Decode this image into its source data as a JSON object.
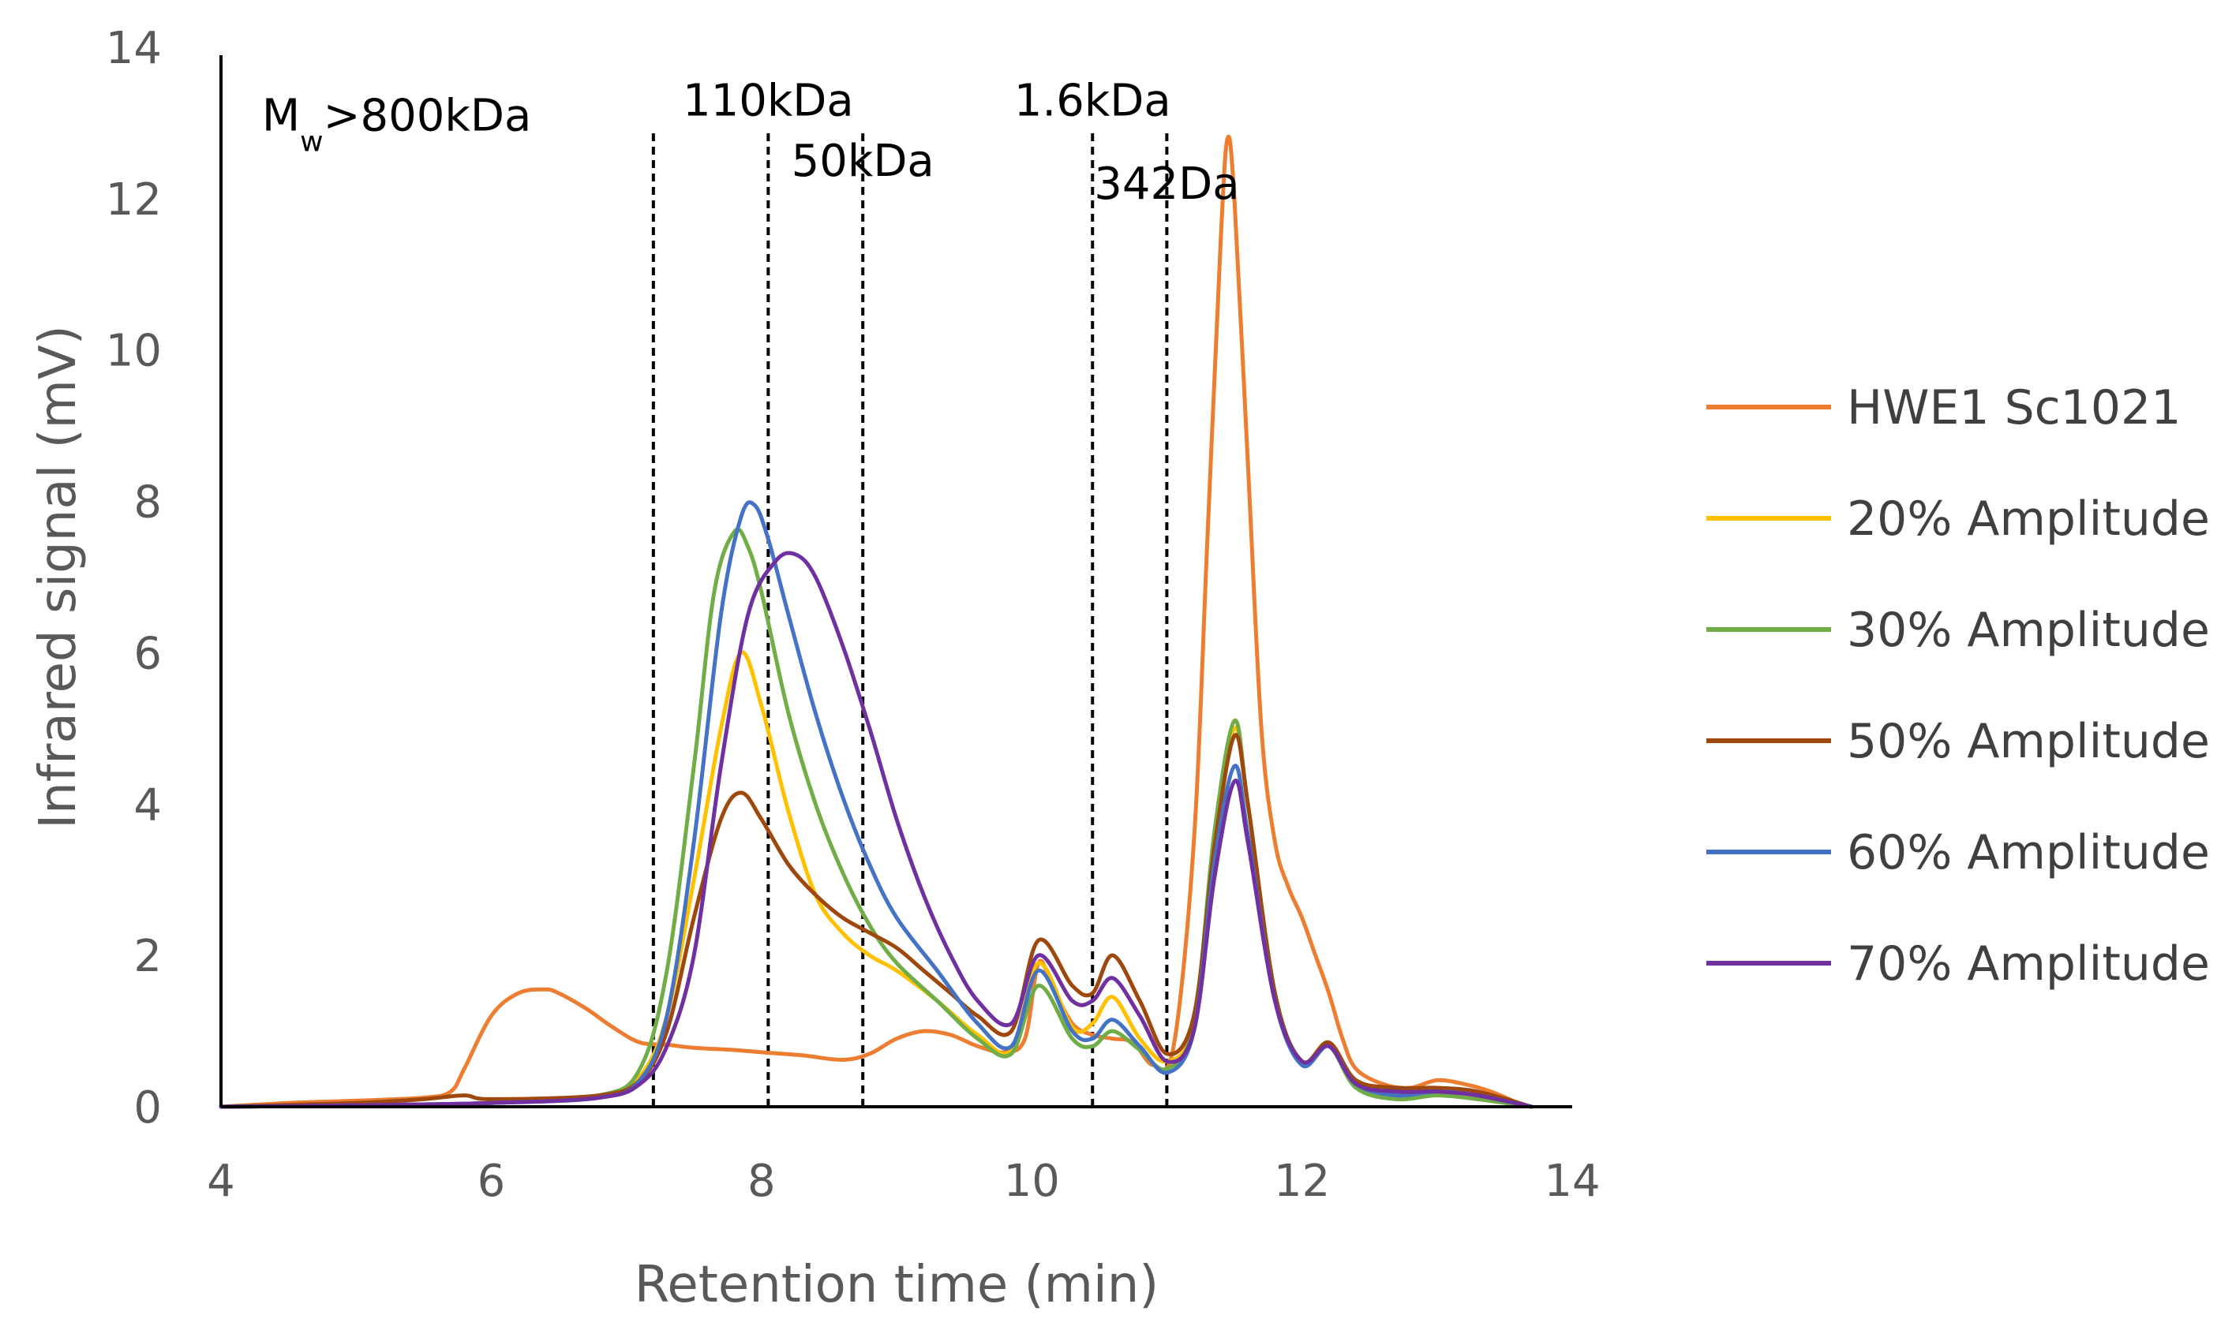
{
  "chart_data": {
    "type": "line",
    "title": "",
    "xlabel": "Retention time (min)",
    "ylabel": "Infrared signal (mV)",
    "xlim": [
      4,
      14
    ],
    "ylim": [
      0,
      14
    ],
    "xticks": [
      4,
      6,
      8,
      10,
      12,
      14
    ],
    "yticks": [
      0,
      2,
      4,
      6,
      8,
      10,
      12,
      14
    ],
    "grid": false,
    "legend_position": "right",
    "annotations": [
      {
        "main": "M",
        "sub": "w",
        "rest": ">800kDa",
        "x": 5.3,
        "y": 12.9
      },
      {
        "main": "110kDa",
        "x": 8.05,
        "y": 13.1
      },
      {
        "main": "50kDa",
        "x": 8.75,
        "y": 12.3
      },
      {
        "main": "1.6kDa",
        "x": 10.45,
        "y": 13.1
      },
      {
        "main": "342Da",
        "x": 11.0,
        "y": 12.0
      }
    ],
    "boundaries": [
      {
        "x": 7.2,
        "ymax": 12.9
      },
      {
        "x": 8.05,
        "ymax": 12.9
      },
      {
        "x": 8.75,
        "ymax": 12.9
      },
      {
        "x": 10.45,
        "ymax": 12.9
      },
      {
        "x": 11.0,
        "ymax": 12.9
      }
    ],
    "series": [
      {
        "name": "HWE1 Sc1021",
        "color": "#ED7D31",
        "x": [
          4.0,
          4.5,
          5.0,
          5.5,
          5.7,
          5.8,
          6.0,
          6.2,
          6.4,
          6.5,
          6.7,
          6.9,
          7.1,
          7.3,
          7.5,
          7.8,
          8.0,
          8.3,
          8.6,
          8.8,
          9.0,
          9.2,
          9.4,
          9.6,
          9.8,
          9.95,
          10.05,
          10.15,
          10.3,
          10.45,
          10.6,
          10.75,
          10.9,
          11.05,
          11.2,
          11.3,
          11.4,
          11.45,
          11.5,
          11.6,
          11.7,
          11.8,
          11.9,
          12.0,
          12.1,
          12.2,
          12.3,
          12.4,
          12.6,
          12.8,
          13.0,
          13.2,
          13.4,
          13.6,
          13.7
        ],
        "values": [
          0.0,
          0.05,
          0.08,
          0.12,
          0.2,
          0.5,
          1.2,
          1.5,
          1.55,
          1.5,
          1.3,
          1.05,
          0.85,
          0.82,
          0.78,
          0.75,
          0.72,
          0.68,
          0.62,
          0.7,
          0.9,
          1.0,
          0.95,
          0.8,
          0.72,
          0.9,
          1.9,
          1.6,
          1.1,
          0.95,
          0.9,
          0.85,
          0.55,
          0.8,
          3.5,
          7.5,
          11.5,
          12.8,
          12.0,
          8.5,
          5.0,
          3.5,
          2.9,
          2.5,
          2.0,
          1.5,
          0.9,
          0.5,
          0.3,
          0.25,
          0.35,
          0.3,
          0.2,
          0.05,
          0.0
        ]
      },
      {
        "name": "20% Amplitude",
        "color": "#FFC000",
        "x": [
          4.0,
          5.0,
          6.0,
          6.8,
          7.1,
          7.3,
          7.5,
          7.7,
          7.85,
          8.0,
          8.2,
          8.4,
          8.6,
          8.8,
          9.0,
          9.3,
          9.6,
          9.85,
          10.05,
          10.3,
          10.45,
          10.6,
          10.8,
          11.0,
          11.2,
          11.35,
          11.5,
          11.6,
          11.8,
          12.0,
          12.2,
          12.4,
          12.7,
          13.0,
          13.3,
          13.7
        ],
        "values": [
          0.0,
          0.02,
          0.05,
          0.15,
          0.4,
          1.2,
          3.0,
          5.0,
          6.0,
          5.3,
          3.9,
          2.8,
          2.3,
          2.0,
          1.8,
          1.4,
          0.95,
          0.75,
          1.9,
          1.05,
          1.1,
          1.45,
          0.9,
          0.6,
          1.1,
          3.5,
          5.0,
          4.0,
          1.5,
          0.6,
          0.85,
          0.3,
          0.15,
          0.2,
          0.15,
          0.0
        ]
      },
      {
        "name": "30% Amplitude",
        "color": "#70AD47",
        "x": [
          4.0,
          5.0,
          6.0,
          6.8,
          7.1,
          7.3,
          7.5,
          7.65,
          7.8,
          7.9,
          8.0,
          8.2,
          8.4,
          8.6,
          8.8,
          9.0,
          9.3,
          9.6,
          9.85,
          10.05,
          10.3,
          10.45,
          10.6,
          10.8,
          11.0,
          11.2,
          11.35,
          11.5,
          11.6,
          11.8,
          12.0,
          12.2,
          12.4,
          12.7,
          13.0,
          13.3,
          13.7
        ],
        "values": [
          0.0,
          0.02,
          0.05,
          0.15,
          0.5,
          1.8,
          4.5,
          6.8,
          7.6,
          7.4,
          6.8,
          5.2,
          4.0,
          3.1,
          2.4,
          1.9,
          1.4,
          0.9,
          0.7,
          1.6,
          0.9,
          0.8,
          1.0,
          0.75,
          0.5,
          1.1,
          3.6,
          5.1,
          4.0,
          1.5,
          0.6,
          0.8,
          0.25,
          0.1,
          0.15,
          0.1,
          0.0
        ]
      },
      {
        "name": "50% Amplitude",
        "color": "#9E480E",
        "x": [
          4.0,
          5.0,
          5.5,
          5.8,
          6.0,
          6.8,
          7.1,
          7.3,
          7.5,
          7.7,
          7.85,
          8.0,
          8.2,
          8.4,
          8.6,
          8.8,
          9.0,
          9.2,
          9.4,
          9.6,
          9.85,
          10.05,
          10.3,
          10.45,
          10.6,
          10.8,
          11.0,
          11.2,
          11.35,
          11.5,
          11.6,
          11.8,
          12.0,
          12.2,
          12.4,
          12.7,
          13.0,
          13.3,
          13.7
        ],
        "values": [
          0.0,
          0.05,
          0.1,
          0.15,
          0.1,
          0.15,
          0.35,
          1.0,
          2.5,
          3.8,
          4.15,
          3.8,
          3.2,
          2.8,
          2.5,
          2.3,
          2.1,
          1.8,
          1.5,
          1.2,
          1.0,
          2.2,
          1.6,
          1.5,
          2.0,
          1.4,
          0.7,
          1.2,
          3.4,
          4.9,
          4.0,
          1.5,
          0.6,
          0.85,
          0.35,
          0.25,
          0.25,
          0.2,
          0.0
        ]
      },
      {
        "name": "60% Amplitude",
        "color": "#4472C4",
        "x": [
          4.0,
          5.0,
          6.0,
          6.8,
          7.1,
          7.3,
          7.5,
          7.7,
          7.85,
          7.95,
          8.05,
          8.2,
          8.4,
          8.6,
          8.8,
          9.0,
          9.3,
          9.6,
          9.85,
          10.05,
          10.3,
          10.45,
          10.6,
          10.8,
          11.0,
          11.2,
          11.35,
          11.5,
          11.6,
          11.8,
          12.0,
          12.2,
          12.4,
          12.7,
          13.0,
          13.3,
          13.7
        ],
        "values": [
          0.0,
          0.02,
          0.05,
          0.12,
          0.35,
          1.2,
          3.5,
          6.5,
          7.8,
          7.95,
          7.5,
          6.5,
          5.2,
          4.1,
          3.2,
          2.5,
          1.8,
          1.1,
          0.8,
          1.8,
          1.0,
          0.9,
          1.15,
          0.8,
          0.45,
          1.0,
          3.2,
          4.5,
          3.6,
          1.4,
          0.55,
          0.8,
          0.3,
          0.15,
          0.2,
          0.15,
          0.0
        ]
      },
      {
        "name": "70% Amplitude",
        "color": "#7030A0",
        "x": [
          4.0,
          5.0,
          6.0,
          6.8,
          7.1,
          7.3,
          7.5,
          7.7,
          7.9,
          8.1,
          8.25,
          8.4,
          8.6,
          8.8,
          9.0,
          9.2,
          9.4,
          9.6,
          9.85,
          10.05,
          10.3,
          10.45,
          10.6,
          10.8,
          11.0,
          11.2,
          11.35,
          11.5,
          11.6,
          11.8,
          12.0,
          12.2,
          12.4,
          12.7,
          13.0,
          13.3,
          13.7
        ],
        "values": [
          0.0,
          0.02,
          0.05,
          0.12,
          0.3,
          0.8,
          2.0,
          4.5,
          6.5,
          7.2,
          7.3,
          7.0,
          6.1,
          5.0,
          3.8,
          2.8,
          2.0,
          1.4,
          1.1,
          2.0,
          1.4,
          1.4,
          1.7,
          1.2,
          0.6,
          1.0,
          3.0,
          4.3,
          3.5,
          1.4,
          0.6,
          0.8,
          0.3,
          0.2,
          0.2,
          0.15,
          0.0
        ]
      }
    ]
  }
}
